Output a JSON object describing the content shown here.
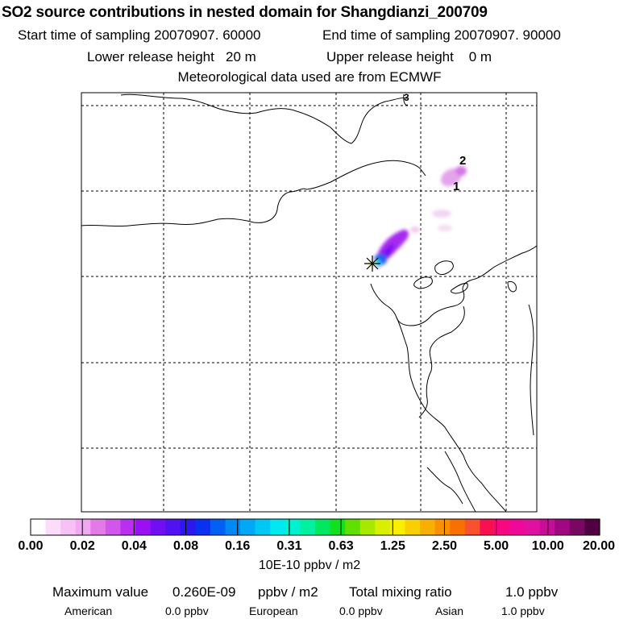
{
  "header": {
    "title": "SO2 source contributions in nested domain for Shangdianzi_200709",
    "start_time": "Start time of sampling 20070907. 60000",
    "end_time": "End time of sampling 20070907. 90000",
    "lower_release": "Lower release height   20 m",
    "upper_release": "Upper release height    0 m",
    "met_data": "Meteorological data used are from ECMWF"
  },
  "map": {
    "label_1": "1",
    "label_2": "2",
    "label_3": "3",
    "station_icon": "star-marker-icon"
  },
  "colorbar": {
    "ticks": [
      "0.00",
      "0.02",
      "0.04",
      "0.08",
      "0.16",
      "0.31",
      "0.63",
      "1.25",
      "2.50",
      "5.00",
      "10.00",
      "20.00"
    ],
    "unit": "10E-10 ppbv / m2",
    "colors": [
      "#ffffff",
      "#fbdcfb",
      "#f6c2f6",
      "#f0a8f0",
      "#e47ae8",
      "#d156ec",
      "#b92eef",
      "#9b10f3",
      "#7010f2",
      "#5012f0",
      "#2e16ee",
      "#0a30f0",
      "#0060f3",
      "#0088f5",
      "#00a8f5",
      "#00c8f5",
      "#00e8f0",
      "#00f0d0",
      "#00f0a0",
      "#00e860",
      "#10e020",
      "#60e000",
      "#a8e800",
      "#d8f000",
      "#f8f000",
      "#f8d000",
      "#f8b000",
      "#f89000",
      "#f87000",
      "#f85030",
      "#f81050",
      "#f80880",
      "#f00898",
      "#e010a0",
      "#c80c98",
      "#a00880",
      "#780860",
      "#500040"
    ]
  },
  "footer": {
    "max_label": "Maximum value",
    "max_value": "0.260E-09",
    "max_unit": "ppbv / m2",
    "total_label": "Total mixing ratio",
    "total_value": "1.0 ppbv",
    "american_label": "American",
    "american_value": "0.0 ppbv",
    "european_label": "European",
    "european_value": "0.0 ppbv",
    "asian_label": "Asian",
    "asian_value": "1.0 ppbv"
  }
}
